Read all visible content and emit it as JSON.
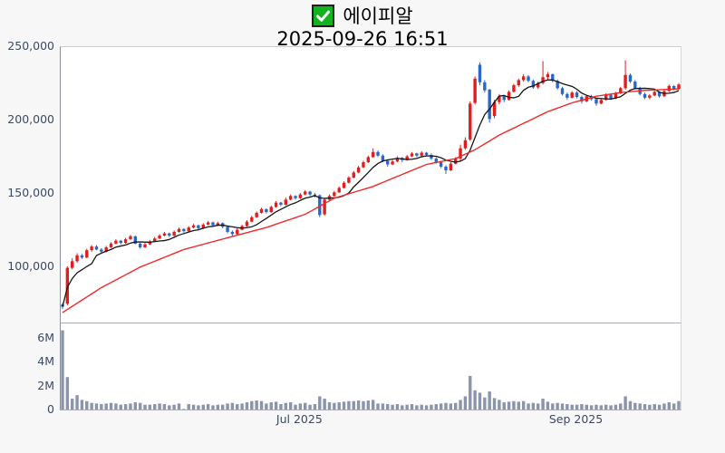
{
  "header": {
    "title": "에이피알",
    "subtitle": "2025-09-26 16:51",
    "checkbox": {
      "checked": true,
      "fill_color": "#12b41e",
      "check_color": "#ffffff"
    }
  },
  "colors": {
    "up_candle": "#e11d1d",
    "down_candle": "#2a67cb",
    "ma_short": "#151515",
    "ma_long": "#ef2929",
    "volume_bar": "#8b93ad",
    "axis_text": "#3c4963",
    "background": "#f7f7f8",
    "plot_background": "#ffffff"
  },
  "chart_data": {
    "type": "candlestick+volume",
    "title": "에이피알",
    "subtitle": "2025-09-26 16:51",
    "legend_position": "top-center",
    "grid": false,
    "price_scale": 1000,
    "volume_scale": 1000000,
    "price_range": [
      62.2,
      250
    ],
    "volume_range": [
      0,
      7.17
    ],
    "price_ticks": [
      {
        "label": "250,000",
        "value": 250
      },
      {
        "label": "200,000",
        "value": 200
      },
      {
        "label": "150,000",
        "value": 150
      },
      {
        "label": "100,000",
        "value": 100
      }
    ],
    "volume_ticks": [
      {
        "label": "6M",
        "value": 6
      },
      {
        "label": "4M",
        "value": 4
      },
      {
        "label": "2M",
        "value": 2
      },
      {
        "label": "0",
        "value": 0
      }
    ],
    "x_ticks": [
      {
        "label": "Jul 2025",
        "index": 49
      },
      {
        "label": "Sep 2025",
        "index": 106
      }
    ],
    "candle_fields": [
      "open",
      "high",
      "low",
      "close",
      "volume"
    ],
    "ma_short_period": 7,
    "ma_long_waypoints": [
      [
        0,
        69
      ],
      [
        8,
        86
      ],
      [
        16,
        100
      ],
      [
        25,
        112
      ],
      [
        34,
        120
      ],
      [
        42,
        127
      ],
      [
        50,
        136
      ],
      [
        56,
        147
      ],
      [
        64,
        155
      ],
      [
        75,
        170
      ],
      [
        81,
        174
      ],
      [
        85,
        180
      ],
      [
        90,
        190
      ],
      [
        95,
        198
      ],
      [
        100,
        206
      ],
      [
        105,
        212
      ],
      [
        110,
        216.5
      ],
      [
        115,
        219
      ],
      [
        120,
        220.5
      ],
      [
        127,
        221.5
      ]
    ],
    "candles": [
      [
        74.5,
        75.5,
        71.5,
        73.0,
        6.6
      ],
      [
        75.0,
        100.5,
        74.0,
        99.5,
        2.7
      ],
      [
        99.5,
        106.0,
        98.5,
        104.0,
        0.9
      ],
      [
        104.0,
        109.5,
        103.0,
        108.0,
        1.2
      ],
      [
        108.0,
        109.0,
        105.5,
        106.5,
        0.8
      ],
      [
        106.5,
        112.5,
        106.0,
        111.5,
        0.7
      ],
      [
        111.5,
        115.0,
        110.5,
        114.0,
        0.55
      ],
      [
        114.0,
        115.0,
        111.5,
        112.0,
        0.5
      ],
      [
        112.0,
        113.0,
        109.5,
        110.5,
        0.45
      ],
      [
        110.5,
        114.5,
        110.0,
        113.5,
        0.5
      ],
      [
        113.5,
        117.0,
        113.0,
        116.0,
        0.55
      ],
      [
        116.0,
        119.0,
        115.5,
        118.0,
        0.5
      ],
      [
        118.0,
        118.5,
        115.5,
        116.5,
        0.4
      ],
      [
        116.5,
        120.0,
        116.0,
        119.0,
        0.45
      ],
      [
        119.0,
        122.0,
        118.5,
        121.0,
        0.5
      ],
      [
        121.0,
        121.5,
        115.5,
        116.0,
        0.6
      ],
      [
        116.0,
        117.0,
        112.5,
        113.5,
        0.55
      ],
      [
        113.5,
        116.5,
        113.0,
        115.5,
        0.4
      ],
      [
        115.5,
        118.5,
        115.0,
        117.5,
        0.4
      ],
      [
        117.5,
        120.5,
        117.0,
        119.5,
        0.45
      ],
      [
        119.5,
        122.5,
        119.0,
        121.5,
        0.5
      ],
      [
        121.5,
        124.0,
        121.0,
        123.0,
        0.45
      ],
      [
        123.0,
        123.5,
        120.5,
        121.5,
        0.35
      ],
      [
        121.5,
        125.0,
        121.0,
        124.0,
        0.4
      ],
      [
        124.0,
        127.0,
        123.5,
        126.0,
        0.5
      ],
      [
        126.0,
        126.5,
        123.5,
        124.5,
        0.05
      ],
      [
        124.5,
        128.0,
        124.0,
        127.0,
        0.45
      ],
      [
        127.0,
        129.5,
        126.5,
        128.5,
        0.4
      ],
      [
        128.5,
        129.0,
        125.5,
        126.5,
        0.35
      ],
      [
        126.5,
        130.0,
        126.0,
        129.0,
        0.4
      ],
      [
        129.0,
        131.5,
        128.5,
        130.5,
        0.45
      ],
      [
        130.5,
        131.0,
        127.5,
        128.5,
        0.35
      ],
      [
        128.5,
        131.0,
        128.0,
        130.0,
        0.4
      ],
      [
        130.0,
        130.5,
        126.5,
        127.5,
        0.4
      ],
      [
        127.5,
        128.0,
        123.0,
        124.0,
        0.5
      ],
      [
        124.0,
        125.0,
        121.0,
        122.5,
        0.55
      ],
      [
        122.5,
        126.5,
        122.0,
        125.5,
        0.45
      ],
      [
        125.5,
        129.0,
        125.0,
        128.0,
        0.5
      ],
      [
        128.0,
        132.0,
        127.5,
        131.0,
        0.6
      ],
      [
        131.0,
        135.0,
        130.5,
        134.0,
        0.7
      ],
      [
        134.0,
        138.0,
        133.5,
        137.0,
        0.75
      ],
      [
        137.0,
        140.5,
        136.5,
        139.5,
        0.7
      ],
      [
        139.5,
        140.0,
        136.5,
        137.5,
        0.5
      ],
      [
        137.5,
        142.0,
        137.0,
        141.0,
        0.6
      ],
      [
        141.0,
        145.0,
        140.5,
        144.0,
        0.65
      ],
      [
        144.0,
        144.5,
        141.5,
        142.5,
        0.45
      ],
      [
        142.5,
        147.5,
        142.0,
        146.0,
        0.55
      ],
      [
        146.0,
        149.5,
        145.5,
        148.5,
        0.6
      ],
      [
        148.5,
        149.0,
        146.0,
        147.0,
        0.4
      ],
      [
        147.0,
        150.5,
        146.5,
        149.5,
        0.5
      ],
      [
        149.5,
        152.5,
        149.0,
        151.5,
        0.55
      ],
      [
        151.5,
        152.0,
        148.5,
        149.5,
        0.4
      ],
      [
        149.5,
        150.5,
        147.5,
        149.0,
        0.45
      ],
      [
        149.0,
        149.5,
        134.0,
        135.5,
        1.1
      ],
      [
        136.0,
        147.0,
        135.0,
        146.0,
        0.9
      ],
      [
        146.0,
        149.5,
        145.5,
        148.5,
        0.6
      ],
      [
        148.5,
        152.0,
        148.0,
        151.0,
        0.55
      ],
      [
        151.0,
        155.0,
        150.5,
        154.0,
        0.6
      ],
      [
        154.0,
        158.5,
        153.5,
        157.5,
        0.65
      ],
      [
        157.5,
        162.0,
        157.0,
        161.0,
        0.7
      ],
      [
        161.0,
        165.5,
        160.5,
        164.5,
        0.7
      ],
      [
        164.5,
        169.0,
        164.0,
        168.0,
        0.75
      ],
      [
        168.0,
        172.5,
        167.5,
        171.5,
        0.7
      ],
      [
        171.5,
        176.0,
        171.0,
        175.0,
        0.75
      ],
      [
        175.0,
        181.0,
        174.5,
        178.5,
        0.8
      ],
      [
        178.5,
        179.5,
        175.0,
        176.0,
        0.5
      ],
      [
        176.0,
        177.0,
        171.5,
        172.5,
        0.5
      ],
      [
        172.5,
        173.5,
        168.5,
        170.0,
        0.45
      ],
      [
        170.0,
        173.0,
        169.5,
        172.0,
        0.4
      ],
      [
        172.0,
        175.5,
        171.5,
        174.5,
        0.45
      ],
      [
        174.5,
        175.0,
        171.5,
        173.0,
        0.35
      ],
      [
        173.0,
        176.5,
        172.5,
        175.5,
        0.4
      ],
      [
        175.5,
        178.5,
        175.0,
        177.5,
        0.45
      ],
      [
        177.5,
        178.0,
        175.0,
        176.0,
        0.35
      ],
      [
        176.0,
        179.0,
        175.5,
        178.0,
        0.4
      ],
      [
        178.0,
        178.5,
        175.5,
        176.5,
        0.35
      ],
      [
        176.5,
        177.5,
        173.0,
        174.0,
        0.4
      ],
      [
        174.0,
        175.0,
        170.5,
        171.5,
        0.45
      ],
      [
        171.5,
        172.5,
        167.5,
        168.5,
        0.5
      ],
      [
        168.5,
        169.5,
        163.5,
        166.0,
        0.55
      ],
      [
        166.0,
        171.5,
        165.5,
        170.5,
        0.5
      ],
      [
        170.5,
        175.0,
        170.0,
        174.0,
        0.55
      ],
      [
        174.0,
        183.5,
        172.0,
        181.0,
        0.8
      ],
      [
        181.0,
        188.5,
        180.0,
        186.5,
        1.1
      ],
      [
        187.0,
        213.0,
        186.0,
        211.5,
        2.8
      ],
      [
        212.0,
        230.0,
        211.0,
        228.5,
        1.6
      ],
      [
        238.0,
        239.5,
        224.0,
        226.0,
        1.4
      ],
      [
        226.0,
        227.5,
        219.0,
        220.5,
        1.0
      ],
      [
        221.0,
        221.5,
        198.5,
        201.0,
        1.5
      ],
      [
        203.0,
        214.0,
        201.5,
        212.5,
        0.95
      ],
      [
        212.5,
        218.0,
        211.0,
        216.5,
        0.8
      ],
      [
        216.5,
        217.5,
        212.5,
        214.0,
        0.6
      ],
      [
        214.0,
        220.5,
        213.5,
        219.5,
        0.65
      ],
      [
        219.5,
        225.0,
        219.0,
        224.0,
        0.7
      ],
      [
        224.0,
        228.5,
        223.0,
        227.5,
        0.65
      ],
      [
        227.5,
        231.5,
        226.5,
        230.0,
        0.7
      ],
      [
        230.0,
        231.0,
        226.0,
        227.0,
        0.5
      ],
      [
        227.0,
        228.0,
        221.5,
        222.5,
        0.55
      ],
      [
        222.5,
        226.5,
        221.5,
        225.5,
        0.5
      ],
      [
        225.5,
        240.5,
        224.5,
        229.5,
        0.9
      ],
      [
        229.5,
        233.0,
        228.0,
        231.5,
        0.65
      ],
      [
        231.5,
        232.0,
        226.0,
        227.0,
        0.5
      ],
      [
        227.0,
        228.0,
        221.0,
        222.0,
        0.55
      ],
      [
        222.0,
        223.0,
        217.0,
        218.0,
        0.5
      ],
      [
        218.0,
        219.0,
        214.0,
        215.5,
        0.45
      ],
      [
        215.5,
        220.0,
        215.0,
        219.0,
        0.4
      ],
      [
        219.0,
        220.0,
        215.0,
        216.0,
        0.4
      ],
      [
        216.0,
        217.0,
        211.5,
        213.0,
        0.45
      ],
      [
        213.0,
        217.5,
        212.5,
        216.5,
        0.4
      ],
      [
        216.5,
        217.5,
        213.5,
        214.5,
        0.35
      ],
      [
        214.5,
        215.5,
        210.0,
        211.5,
        0.4
      ],
      [
        211.5,
        215.0,
        211.0,
        214.0,
        0.35
      ],
      [
        214.0,
        218.5,
        213.5,
        217.5,
        0.4
      ],
      [
        217.5,
        218.0,
        214.0,
        215.0,
        0.35
      ],
      [
        215.0,
        219.5,
        214.5,
        218.5,
        0.4
      ],
      [
        218.5,
        223.0,
        218.0,
        222.0,
        0.5
      ],
      [
        222.0,
        241.0,
        221.0,
        231.0,
        1.1
      ],
      [
        231.0,
        232.0,
        225.5,
        226.5,
        0.7
      ],
      [
        226.5,
        227.5,
        221.0,
        222.0,
        0.55
      ],
      [
        222.0,
        223.0,
        217.0,
        218.0,
        0.5
      ],
      [
        218.0,
        219.0,
        214.5,
        215.5,
        0.45
      ],
      [
        215.5,
        218.0,
        214.5,
        217.0,
        0.4
      ],
      [
        217.0,
        220.5,
        216.5,
        219.5,
        0.45
      ],
      [
        219.5,
        220.0,
        215.5,
        216.5,
        0.4
      ],
      [
        216.5,
        221.0,
        216.0,
        220.0,
        0.5
      ],
      [
        220.0,
        224.5,
        219.5,
        223.5,
        0.6
      ],
      [
        223.5,
        224.0,
        220.5,
        221.5,
        0.5
      ],
      [
        221.5,
        225.5,
        221.0,
        224.5,
        0.7
      ]
    ]
  }
}
